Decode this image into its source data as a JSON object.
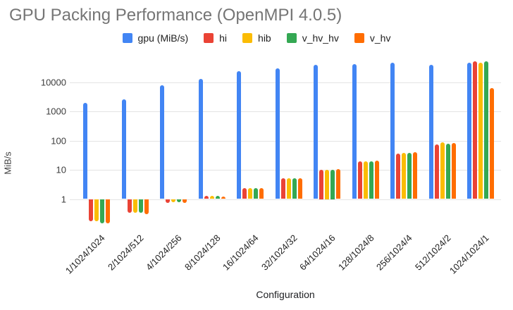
{
  "chart_data": {
    "type": "bar",
    "title": "GPU Packing Performance (OpenMPI 4.0.5)",
    "xlabel": "Configuration",
    "ylabel": "MiB/s",
    "y_scale": "log",
    "y_ticks": [
      1,
      10,
      100,
      1000,
      10000
    ],
    "ylim": [
      0.13,
      56000
    ],
    "grid": "horizontal",
    "legend_position": "top-center",
    "categories": [
      "1/1024/1024",
      "2/1024/512",
      "4/1024/256",
      "8/1024/128",
      "16/1024/64",
      "32/1024/32",
      "64/1024/16",
      "128/1024/8",
      "256/1024/4",
      "512/1024/2",
      "1024/1024/1"
    ],
    "series": [
      {
        "name": "gpu (MiB/s)",
        "color": "#4285F4",
        "values": [
          2000,
          2500,
          8000,
          12500,
          23000,
          30000,
          38000,
          41500,
          46000,
          40000,
          47000
        ]
      },
      {
        "name": "hi",
        "color": "#EA4335",
        "values": [
          0.17,
          0.33,
          0.75,
          1.25,
          2.4,
          5,
          10,
          20,
          35,
          75,
          50000
        ]
      },
      {
        "name": "hib",
        "color": "#FBBC04",
        "values": [
          0.17,
          0.33,
          0.8,
          1.3,
          2.4,
          5,
          10,
          20,
          38,
          85,
          47000
        ]
      },
      {
        "name": "v_hv_hv",
        "color": "#34A853",
        "values": [
          0.15,
          0.33,
          0.8,
          1.25,
          2.3,
          5,
          10,
          20,
          38,
          80,
          52000
        ]
      },
      {
        "name": "v_hv",
        "color": "#FF6D01",
        "values": [
          0.15,
          0.3,
          0.75,
          1.2,
          2.4,
          5,
          10.5,
          20.5,
          40,
          82,
          6200
        ]
      }
    ]
  }
}
